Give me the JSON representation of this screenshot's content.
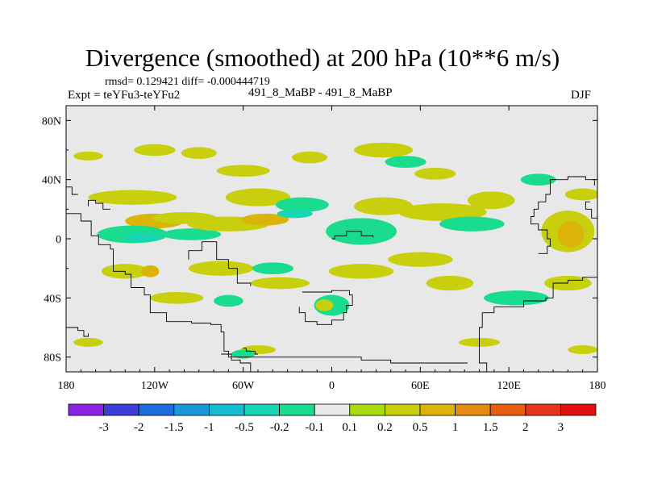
{
  "chart_data": {
    "type": "heatmap",
    "title": "Divergence (smoothed) at 200 hPa (10**6 m/s)",
    "stats_text": "rmsd= 0.129421 diff= -0.000444719",
    "left_label": "Expt = teYFu3-teYFu2",
    "center_label": "491_8_MaBP - 491_8_MaBP",
    "right_label": "DJF",
    "x_range": [
      -180,
      180
    ],
    "y_range": [
      -90,
      90
    ],
    "x_ticks": [
      {
        "value": -180,
        "label": "180"
      },
      {
        "value": -120,
        "label": "120W"
      },
      {
        "value": -60,
        "label": "60W"
      },
      {
        "value": 0,
        "label": "0"
      },
      {
        "value": 60,
        "label": "60E"
      },
      {
        "value": 120,
        "label": "120E"
      },
      {
        "value": 180,
        "label": "180"
      }
    ],
    "y_ticks": [
      {
        "value": 80,
        "label": "80N"
      },
      {
        "value": 40,
        "label": "40N"
      },
      {
        "value": 0,
        "label": "0"
      },
      {
        "value": -40,
        "label": "40S"
      },
      {
        "value": -80,
        "label": "80S"
      }
    ],
    "colorbar": {
      "labels": [
        "-3",
        "-2",
        "-1.5",
        "-1",
        "-0.5",
        "-0.2",
        "-0.1",
        "0.1",
        "0.2",
        "0.5",
        "1",
        "1.5",
        "2",
        "3"
      ],
      "colors": [
        "#8c24e6",
        "#3c3cd8",
        "#1c6ce0",
        "#1a96dc",
        "#14bcd0",
        "#16d6b4",
        "#1adc8e",
        "#e8e8e8",
        "#a6dc10",
        "#c8d00e",
        "#dab408",
        "#e68a10",
        "#e85c10",
        "#e6341a",
        "#e01010"
      ]
    },
    "neutral_color": "#e8e8e8",
    "blobs": [
      {
        "lon": -135,
        "lat": 28,
        "rx": 30,
        "ry": 5,
        "level": 0.2
      },
      {
        "lon": -120,
        "lat": 12,
        "rx": 20,
        "ry": 5,
        "level": 0.5
      },
      {
        "lon": -100,
        "lat": 14,
        "rx": 22,
        "ry": 4,
        "level": 0.2
      },
      {
        "lon": -135,
        "lat": 3,
        "rx": 24,
        "ry": 6,
        "level": -0.2
      },
      {
        "lon": -128,
        "lat": 1,
        "rx": 12,
        "ry": 3,
        "level": -0.5
      },
      {
        "lon": -95,
        "lat": 3,
        "rx": 20,
        "ry": 4,
        "level": -0.2
      },
      {
        "lon": -70,
        "lat": 10,
        "rx": 28,
        "ry": 5,
        "level": 0.2
      },
      {
        "lon": -50,
        "lat": 28,
        "rx": 22,
        "ry": 6,
        "level": 0.2
      },
      {
        "lon": -45,
        "lat": 13,
        "rx": 16,
        "ry": 4,
        "level": 0.5
      },
      {
        "lon": -20,
        "lat": 23,
        "rx": 18,
        "ry": 5,
        "level": -0.2
      },
      {
        "lon": -25,
        "lat": 17,
        "rx": 12,
        "ry": 3,
        "level": -0.5
      },
      {
        "lon": 20,
        "lat": 5,
        "rx": 24,
        "ry": 9,
        "level": -0.2
      },
      {
        "lon": 35,
        "lat": 22,
        "rx": 20,
        "ry": 6,
        "level": 0.2
      },
      {
        "lon": 75,
        "lat": 18,
        "rx": 30,
        "ry": 6,
        "level": 0.2
      },
      {
        "lon": 95,
        "lat": 10,
        "rx": 22,
        "ry": 5,
        "level": -0.2
      },
      {
        "lon": 108,
        "lat": 26,
        "rx": 16,
        "ry": 6,
        "level": 0.2
      },
      {
        "lon": 160,
        "lat": 5,
        "rx": 18,
        "ry": 14,
        "level": 0.2
      },
      {
        "lon": 162,
        "lat": 3,
        "rx": 9,
        "ry": 9,
        "level": 0.5
      },
      {
        "lon": 170,
        "lat": 30,
        "rx": 12,
        "ry": 4,
        "level": 0.2
      },
      {
        "lon": -165,
        "lat": 56,
        "rx": 10,
        "ry": 3,
        "level": 0.2
      },
      {
        "lon": -120,
        "lat": 60,
        "rx": 14,
        "ry": 4,
        "level": 0.2
      },
      {
        "lon": -90,
        "lat": 58,
        "rx": 12,
        "ry": 4,
        "level": 0.2
      },
      {
        "lon": -60,
        "lat": 46,
        "rx": 18,
        "ry": 4,
        "level": 0.2
      },
      {
        "lon": -15,
        "lat": 55,
        "rx": 12,
        "ry": 4,
        "level": 0.2
      },
      {
        "lon": 35,
        "lat": 60,
        "rx": 20,
        "ry": 5,
        "level": 0.2
      },
      {
        "lon": 50,
        "lat": 52,
        "rx": 14,
        "ry": 4,
        "level": -0.2
      },
      {
        "lon": 70,
        "lat": 44,
        "rx": 14,
        "ry": 4,
        "level": 0.2
      },
      {
        "lon": 140,
        "lat": 40,
        "rx": 12,
        "ry": 4,
        "level": -0.2
      },
      {
        "lon": -140,
        "lat": -22,
        "rx": 16,
        "ry": 5,
        "level": 0.2
      },
      {
        "lon": -123,
        "lat": -22,
        "rx": 6,
        "ry": 4,
        "level": 0.5
      },
      {
        "lon": -105,
        "lat": -40,
        "rx": 18,
        "ry": 4,
        "level": 0.2
      },
      {
        "lon": -75,
        "lat": -20,
        "rx": 22,
        "ry": 5,
        "level": 0.2
      },
      {
        "lon": -40,
        "lat": -20,
        "rx": 14,
        "ry": 4,
        "level": -0.2
      },
      {
        "lon": -35,
        "lat": -30,
        "rx": 20,
        "ry": 4,
        "level": 0.2
      },
      {
        "lon": -70,
        "lat": -42,
        "rx": 10,
        "ry": 4,
        "level": -0.2
      },
      {
        "lon": 0,
        "lat": -45,
        "rx": 12,
        "ry": 7,
        "level": -0.2
      },
      {
        "lon": -5,
        "lat": -45,
        "rx": 6,
        "ry": 4,
        "level": 0.2
      },
      {
        "lon": 20,
        "lat": -22,
        "rx": 22,
        "ry": 5,
        "level": 0.2
      },
      {
        "lon": 60,
        "lat": -14,
        "rx": 22,
        "ry": 5,
        "level": 0.2
      },
      {
        "lon": 80,
        "lat": -30,
        "rx": 16,
        "ry": 5,
        "level": 0.2
      },
      {
        "lon": 125,
        "lat": -40,
        "rx": 22,
        "ry": 5,
        "level": -0.2
      },
      {
        "lon": 160,
        "lat": -30,
        "rx": 16,
        "ry": 5,
        "level": 0.2
      },
      {
        "lon": -165,
        "lat": -70,
        "rx": 10,
        "ry": 3,
        "level": 0.2
      },
      {
        "lon": -50,
        "lat": -75,
        "rx": 12,
        "ry": 3,
        "level": 0.2
      },
      {
        "lon": -60,
        "lat": -78,
        "rx": 8,
        "ry": 3,
        "level": -0.2
      },
      {
        "lon": 100,
        "lat": -70,
        "rx": 14,
        "ry": 3,
        "level": 0.2
      },
      {
        "lon": 170,
        "lat": -75,
        "rx": 10,
        "ry": 3,
        "level": 0.2
      }
    ],
    "continent_outlines": [
      [
        [
          -180,
          17
        ],
        [
          -175,
          17
        ],
        [
          -170,
          12
        ],
        [
          -163,
          2
        ],
        [
          -158,
          -4
        ],
        [
          -150,
          -7
        ],
        [
          -148,
          -22
        ],
        [
          -140,
          -24
        ],
        [
          -136,
          -33
        ],
        [
          -127,
          -38
        ],
        [
          -123,
          -50
        ],
        [
          -112,
          -56
        ],
        [
          -95,
          -57
        ],
        [
          -82,
          -58
        ],
        [
          -75,
          -63
        ],
        [
          -73,
          -76
        ],
        [
          -70,
          -78
        ],
        [
          -68,
          -82
        ],
        [
          -62,
          -84
        ],
        [
          -57,
          -84
        ],
        [
          -55,
          -90
        ]
      ],
      [
        [
          -180,
          -60
        ],
        [
          -172,
          -62
        ],
        [
          -168,
          -66
        ],
        [
          -165,
          -64
        ]
      ],
      [
        [
          -97,
          -14
        ],
        [
          -97,
          -8
        ],
        [
          -88,
          -8
        ],
        [
          -88,
          -2
        ],
        [
          -80,
          -2
        ],
        [
          -78,
          -14
        ],
        [
          -70,
          -20
        ],
        [
          -64,
          -30
        ],
        [
          -55,
          -32
        ]
      ],
      [
        [
          -60,
          -74
        ],
        [
          -58,
          -76
        ],
        [
          -52,
          -76
        ],
        [
          -52,
          -78
        ],
        [
          -50,
          -78
        ]
      ],
      [
        [
          0,
          0
        ],
        [
          2,
          2
        ],
        [
          8,
          2
        ],
        [
          10,
          5
        ],
        [
          16,
          5
        ],
        [
          20,
          2
        ],
        [
          24,
          2
        ],
        [
          28,
          1
        ]
      ],
      [
        [
          -20,
          -36
        ],
        [
          -10,
          -36
        ],
        [
          0,
          -35
        ],
        [
          12,
          -38
        ],
        [
          14,
          -45
        ],
        [
          10,
          -50
        ],
        [
          8,
          -55
        ],
        [
          0,
          -58
        ],
        [
          -10,
          -56
        ],
        [
          -18,
          -50
        ],
        [
          -22,
          -46
        ]
      ],
      [
        [
          -75,
          -78
        ],
        [
          -70,
          -80
        ],
        [
          -55,
          -80
        ],
        [
          -40,
          -80
        ],
        [
          -20,
          -80
        ],
        [
          0,
          -80
        ],
        [
          20,
          -82
        ],
        [
          40,
          -84
        ],
        [
          70,
          -84
        ],
        [
          92,
          -84
        ]
      ],
      [
        [
          108,
          -90
        ],
        [
          105,
          -84
        ],
        [
          100,
          -78
        ],
        [
          100,
          -60
        ],
        [
          102,
          -50
        ],
        [
          110,
          -46
        ],
        [
          130,
          -42
        ],
        [
          145,
          -40
        ],
        [
          150,
          -30
        ],
        [
          160,
          -28
        ],
        [
          170,
          -26
        ],
        [
          180,
          -22
        ]
      ],
      [
        [
          140,
          -10
        ],
        [
          146,
          -5
        ],
        [
          148,
          0
        ],
        [
          146,
          6
        ],
        [
          140,
          10
        ],
        [
          135,
          15
        ],
        [
          137,
          20
        ],
        [
          140,
          25
        ],
        [
          145,
          30
        ],
        [
          148,
          40
        ],
        [
          160,
          42
        ],
        [
          172,
          40
        ],
        [
          178,
          36
        ]
      ],
      [
        [
          -150,
          20
        ],
        [
          -155,
          24
        ],
        [
          -160,
          26
        ],
        [
          -165,
          22
        ]
      ],
      [
        [
          -180,
          35
        ],
        [
          -176,
          30
        ],
        [
          -172,
          30
        ]
      ],
      [
        [
          175,
          25
        ],
        [
          172,
          20
        ],
        [
          176,
          14
        ],
        [
          180,
          10
        ]
      ]
    ]
  }
}
